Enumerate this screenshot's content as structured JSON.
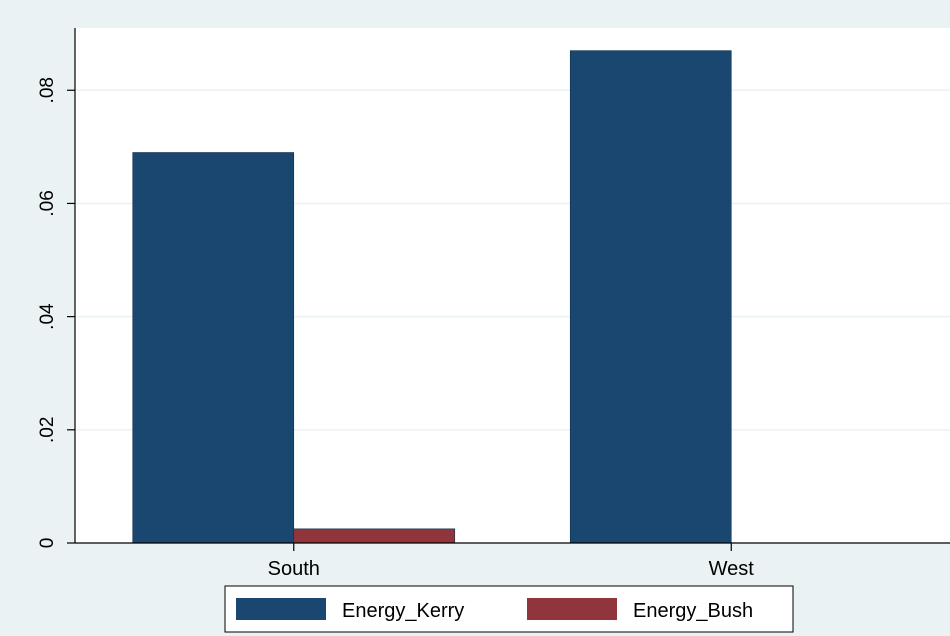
{
  "chart_data": {
    "type": "bar",
    "categories": [
      "South",
      "West"
    ],
    "series": [
      {
        "name": "Energy_Kerry",
        "color": "#1a476f",
        "values": [
          0.069,
          0.087
        ]
      },
      {
        "name": "Energy_Bush",
        "color": "#90353b",
        "values": [
          0.0025,
          0
        ]
      }
    ],
    "ylim": [
      0,
      0.091
    ],
    "y_ticks": [
      0,
      0.02,
      0.04,
      0.06,
      0.08
    ],
    "y_tick_labels": [
      "0",
      ".02",
      ".04",
      ".06",
      ".08"
    ],
    "grid": true,
    "legend_position": "bottom",
    "title": "",
    "xlabel": "",
    "ylabel": ""
  }
}
